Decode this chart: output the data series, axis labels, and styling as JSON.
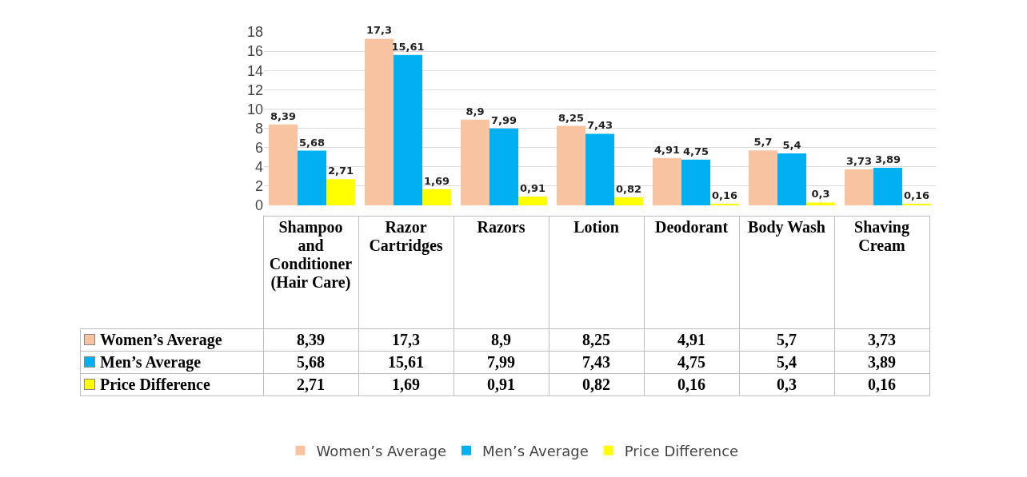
{
  "chart_data": {
    "type": "bar",
    "categories": [
      "Shampoo and Conditioner (Hair Care)",
      "Razor Cartridges",
      "Razors",
      "Lotion",
      "Deodorant",
      "Body Wash",
      "Shaving Cream"
    ],
    "series": [
      {
        "name": "Women’s Average",
        "color": "#f8c3a0",
        "values": [
          8.39,
          17.3,
          8.9,
          8.25,
          4.91,
          5.7,
          3.73
        ],
        "value_labels": [
          "8,39",
          "17,3",
          "8,9",
          "8,25",
          "4,91",
          "5,7",
          "3,73"
        ]
      },
      {
        "name": "Men’s Average",
        "color": "#00b0f0",
        "values": [
          5.68,
          15.61,
          7.99,
          7.43,
          4.75,
          5.4,
          3.89
        ],
        "value_labels": [
          "5,68",
          "15,61",
          "7,99",
          "7,43",
          "4,75",
          "5,4",
          "3,89"
        ]
      },
      {
        "name": "Price Difference",
        "color": "#ffff00",
        "values": [
          2.71,
          1.69,
          0.91,
          0.82,
          0.16,
          0.3,
          0.16
        ],
        "value_labels": [
          "2,71",
          "1,69",
          "0,91",
          "0,82",
          "0,16",
          "0,3",
          "0,16"
        ]
      }
    ],
    "ylim": [
      0,
      18
    ],
    "yticks": [
      0,
      2,
      4,
      6,
      8,
      10,
      12,
      14,
      16,
      18
    ],
    "grid": "y",
    "legend": "bottom"
  }
}
